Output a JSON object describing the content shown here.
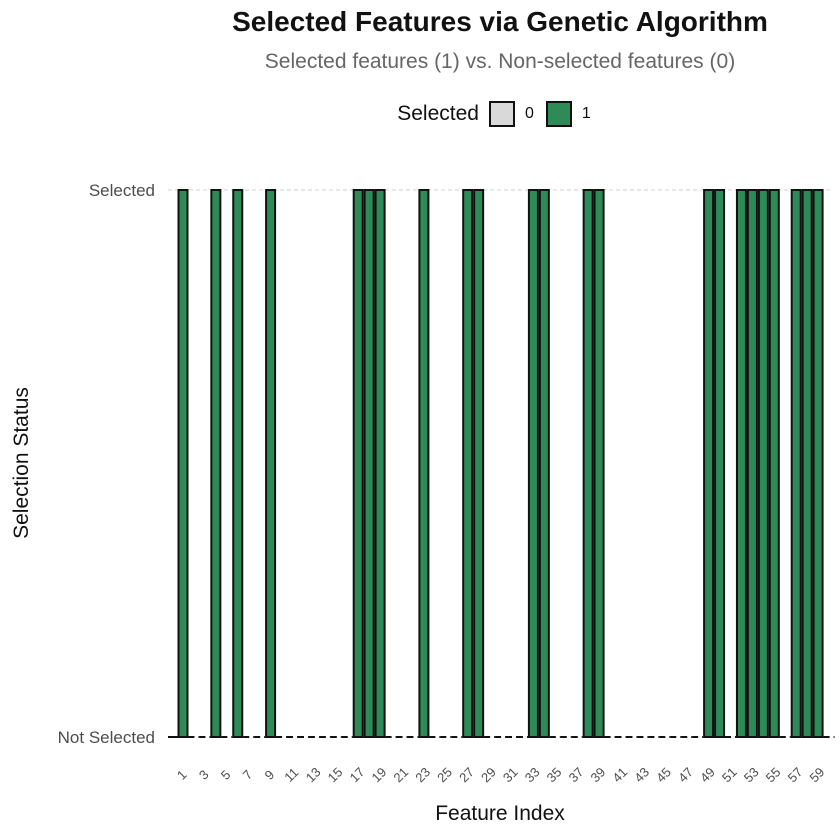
{
  "chart_data": {
    "type": "bar",
    "title": "Selected Features via Genetic Algorithm",
    "subtitle": "Selected features (1) vs. Non-selected features (0)",
    "xlabel": "Feature Index",
    "ylabel": "Selection Status",
    "legend": {
      "title": "Selected",
      "position": "top",
      "entries": [
        {
          "label": "0",
          "color": "#d9d9d9"
        },
        {
          "label": "1",
          "color": "#2e8b57"
        }
      ]
    },
    "x": [
      1,
      2,
      3,
      4,
      5,
      6,
      7,
      8,
      9,
      10,
      11,
      12,
      13,
      14,
      15,
      16,
      17,
      18,
      19,
      20,
      21,
      22,
      23,
      24,
      25,
      26,
      27,
      28,
      29,
      30,
      31,
      32,
      33,
      34,
      35,
      36,
      37,
      38,
      39,
      40,
      41,
      42,
      43,
      44,
      45,
      46,
      47,
      48,
      49,
      50,
      51,
      52,
      53,
      54,
      55,
      56,
      57,
      58,
      59,
      60
    ],
    "x_tick_labels": [
      "1",
      "3",
      "5",
      "7",
      "9",
      "11",
      "13",
      "15",
      "17",
      "19",
      "21",
      "23",
      "25",
      "27",
      "29",
      "31",
      "33",
      "35",
      "37",
      "39",
      "41",
      "43",
      "45",
      "47",
      "49",
      "51",
      "53",
      "55",
      "57",
      "59"
    ],
    "y_tick_labels": [
      "Not Selected",
      "Selected"
    ],
    "ylim": [
      0,
      1
    ],
    "values": [
      1,
      0,
      0,
      1,
      0,
      1,
      0,
      0,
      1,
      0,
      0,
      0,
      0,
      0,
      0,
      0,
      1,
      1,
      1,
      0,
      0,
      0,
      1,
      0,
      0,
      0,
      1,
      1,
      0,
      0,
      0,
      0,
      1,
      1,
      0,
      0,
      0,
      1,
      1,
      0,
      0,
      0,
      0,
      0,
      0,
      0,
      0,
      0,
      1,
      1,
      0,
      1,
      1,
      1,
      1,
      0,
      1,
      1,
      1,
      0
    ],
    "grid": "major y dashed",
    "colors": {
      "selected": "#2e8b57",
      "not_selected": "#d9d9d9",
      "outline": "#111111"
    }
  }
}
